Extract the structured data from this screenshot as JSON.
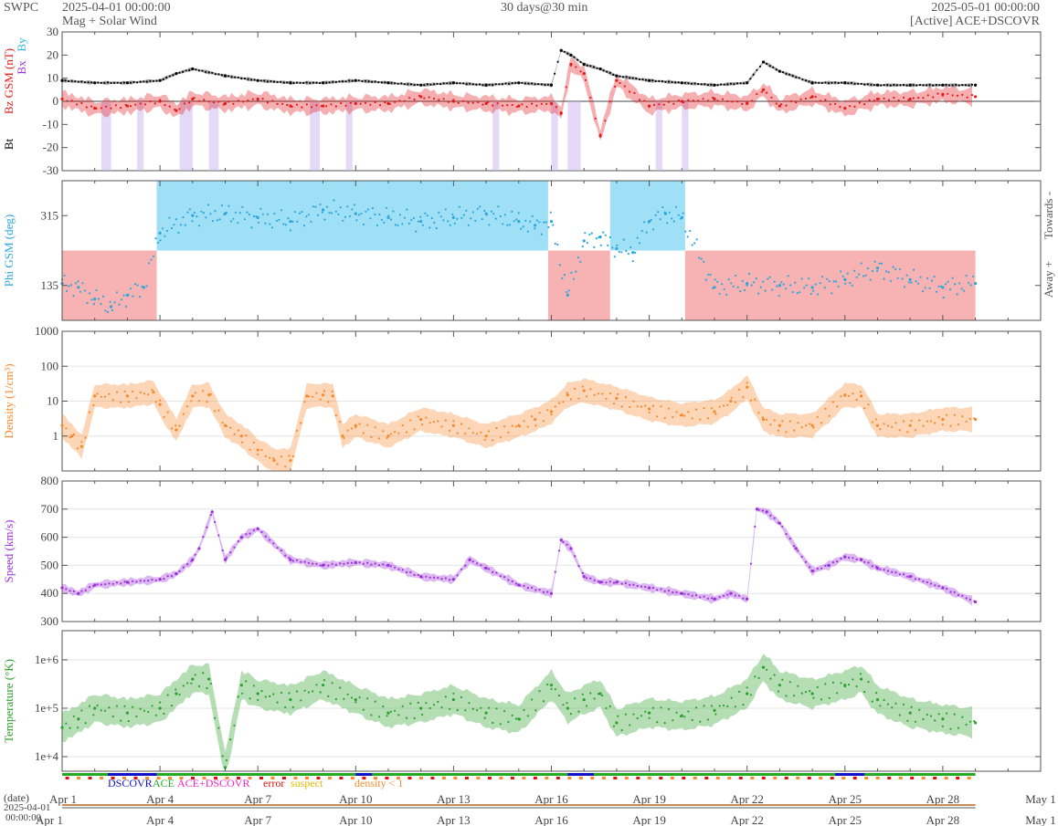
{
  "header": {
    "org": "SWPC",
    "start_time": "2025-04-01 00:00:00",
    "product": "Mag + Solar Wind",
    "span": "30 days@30 min",
    "end_time": "2025-05-01 00:00:00",
    "source": "[Active] ACE+DSCOVR"
  },
  "colors": {
    "bt": "#000000",
    "bz": "#e41a1c",
    "by": "#2fb3e0",
    "bz_alt": "#9b30d9",
    "phi_towards": "#9fe0f7",
    "phi_away": "#f7b3b3",
    "phi_points": "#2fa6d9",
    "density": "#f58a2f",
    "speed": "#9b30d9",
    "temperature": "#2ca02c",
    "dscovr": "#1111cc",
    "ace": "#22aa22",
    "ace_dscovr": "#ff22cc",
    "error": "#dd1111",
    "suspect": "#e6b800",
    "density_lt1": "#f58a2f"
  },
  "time_axis": {
    "tick_labels": [
      "Apr 1",
      "Apr 4",
      "Apr 7",
      "Apr 10",
      "Apr 13",
      "Apr 16",
      "Apr 19",
      "Apr 22",
      "Apr 25",
      "Apr 28",
      "May 1"
    ],
    "tick_days": [
      0,
      3,
      6,
      9,
      12,
      15,
      18,
      21,
      24,
      27,
      30
    ],
    "date_label": "(date)",
    "start_date": "2025-04-01",
    "start_clock": "00:00:00"
  },
  "status_legend": {
    "dscovr": "DSCOVR",
    "ace": "ACE",
    "ace_dscovr": "ACE+DSCOVR",
    "error": "error",
    "suspect": "suspect",
    "density": "density < 1"
  },
  "chart_data": [
    {
      "type": "line",
      "panel": "mag",
      "ylabel_parts": [
        "Bt",
        "Bz GSM (nT)",
        "Bx",
        "By"
      ],
      "ylim": [
        -30,
        30
      ],
      "yticks": [
        30,
        20,
        10,
        0,
        -10,
        -20,
        -30
      ],
      "x_unit": "days since start",
      "series": [
        {
          "name": "Bt",
          "x": [
            0,
            1,
            2,
            3,
            3.5,
            4,
            5,
            6,
            7,
            8,
            9,
            10,
            11,
            12,
            13,
            14,
            15,
            15.3,
            15.6,
            16,
            16.5,
            17,
            18,
            19,
            20,
            21,
            21.5,
            22,
            23,
            24,
            25,
            26,
            27,
            28
          ],
          "values": [
            9,
            8,
            8,
            9,
            12,
            14,
            11,
            9,
            8,
            8,
            9,
            8,
            7,
            8,
            7,
            8,
            7,
            22,
            20,
            16,
            14,
            11,
            9,
            8,
            7,
            8,
            17,
            13,
            8,
            8,
            7,
            7,
            7,
            7
          ]
        },
        {
          "name": "Bz GSM",
          "x": [
            0,
            1,
            2,
            3,
            3.5,
            4,
            5,
            6,
            7,
            8,
            9,
            10,
            11,
            12,
            13,
            14,
            15,
            15.3,
            15.6,
            16,
            16.5,
            17,
            18,
            19,
            20,
            21,
            21.5,
            22,
            23,
            24,
            25,
            26,
            27,
            28
          ],
          "values": [
            1,
            -3,
            -2,
            0,
            -4,
            1,
            -1,
            1,
            -2,
            -2,
            -1,
            -1,
            2,
            0,
            -1,
            -2,
            -1,
            -5,
            16,
            12,
            -15,
            9,
            -2,
            0,
            1,
            -1,
            5,
            -2,
            2,
            -3,
            1,
            1,
            3,
            2
          ]
        }
      ]
    },
    {
      "type": "scatter",
      "panel": "phi",
      "ylabel": "Phi GSM (deg)",
      "ylim": [
        45,
        405
      ],
      "yticks": [
        315,
        135
      ],
      "right_labels": [
        "Towards -",
        "Away +"
      ],
      "x_unit": "days since start",
      "towards_spans": [
        [
          2.9,
          14.9
        ],
        [
          16.8,
          19.1
        ]
      ],
      "away_spans": [
        [
          0,
          2.9
        ],
        [
          14.9,
          16.8
        ],
        [
          19.1,
          28
        ]
      ],
      "series": [
        {
          "name": "Phi",
          "x": [
            0,
            0.5,
            1,
            1.5,
            2,
            2.5,
            3,
            4,
            5,
            6,
            7,
            8,
            9,
            10,
            11,
            12,
            13,
            14,
            14.5,
            15,
            15.5,
            16,
            16.5,
            17,
            17.5,
            18,
            18.5,
            19,
            20,
            21,
            22,
            23,
            24,
            25,
            26,
            27,
            28
          ],
          "values": [
            140,
            130,
            100,
            80,
            110,
            130,
            270,
            315,
            320,
            310,
            300,
            330,
            320,
            310,
            300,
            310,
            320,
            300,
            290,
            300,
            110,
            250,
            260,
            230,
            220,
            300,
            320,
            310,
            130,
            140,
            135,
            130,
            150,
            180,
            150,
            130,
            140
          ]
        }
      ]
    },
    {
      "type": "line",
      "panel": "density",
      "ylabel": "Density (1/cm³)",
      "yscale": "log",
      "ylim": [
        0.1,
        1000
      ],
      "yticks": [
        1000,
        100,
        10,
        1
      ],
      "x_unit": "days since start",
      "series": [
        {
          "name": "Density",
          "x": [
            0,
            0.3,
            0.6,
            1,
            2,
            2.8,
            3,
            3.5,
            4,
            4.5,
            5,
            5.5,
            6,
            6.5,
            7,
            7.5,
            8,
            8.3,
            8.6,
            9,
            10,
            11,
            12,
            13,
            14,
            14.5,
            15,
            15.5,
            16,
            17,
            18,
            19,
            20,
            20.5,
            21,
            21.5,
            22,
            23,
            24,
            24.5,
            25,
            26,
            27,
            28
          ],
          "values": [
            2,
            1,
            0.5,
            14,
            14,
            18,
            8,
            1.5,
            14,
            15,
            2,
            1,
            0.4,
            0.2,
            0.2,
            14,
            15,
            14,
            1,
            2,
            1,
            3,
            2,
            1,
            2,
            3,
            5,
            15,
            20,
            12,
            6,
            4,
            5,
            10,
            25,
            3,
            2,
            2,
            15,
            14,
            2,
            2,
            3,
            3
          ]
        }
      ]
    },
    {
      "type": "line",
      "panel": "speed",
      "ylabel": "Speed (km/s)",
      "ylim": [
        300,
        800
      ],
      "yticks": [
        800,
        700,
        600,
        500,
        400,
        300
      ],
      "x_unit": "days since start",
      "series": [
        {
          "name": "Speed",
          "x": [
            0,
            0.5,
            1,
            2,
            3,
            3.5,
            4,
            4.2,
            4.6,
            5,
            5.5,
            6,
            7,
            8,
            9,
            10,
            11,
            12,
            12.5,
            13,
            14,
            15,
            15.3,
            15.6,
            16,
            16.5,
            17,
            18,
            19,
            20,
            20.5,
            21,
            21.3,
            21.6,
            22,
            22.5,
            23,
            23.5,
            24,
            24.5,
            25,
            26,
            27,
            28
          ],
          "values": [
            420,
            400,
            430,
            440,
            450,
            470,
            520,
            560,
            690,
            520,
            600,
            630,
            520,
            500,
            510,
            500,
            460,
            450,
            520,
            490,
            430,
            400,
            590,
            560,
            460,
            440,
            440,
            420,
            400,
            380,
            400,
            380,
            700,
            690,
            650,
            560,
            480,
            500,
            530,
            520,
            490,
            460,
            420,
            370
          ]
        }
      ]
    },
    {
      "type": "line",
      "panel": "temperature",
      "ylabel": "Temperature (°K)",
      "yscale": "log",
      "ylim": [
        5000,
        4000000
      ],
      "yticks": [
        1000000,
        100000,
        10000
      ],
      "ytick_labels": [
        "1e+6",
        "1e+5",
        "1e+4"
      ],
      "x_unit": "days since start",
      "series": [
        {
          "name": "Temperature",
          "x": [
            0,
            0.5,
            1,
            2,
            3,
            3.5,
            4,
            4.5,
            5,
            5.5,
            6,
            7,
            8,
            9,
            10,
            11,
            12,
            13,
            14,
            15,
            15.5,
            16,
            16.5,
            17,
            18,
            19,
            20,
            21,
            21.5,
            22,
            23,
            24,
            24.5,
            25,
            26,
            27,
            28
          ],
          "values": [
            40000,
            60000,
            100000,
            80000,
            100000,
            200000,
            400000,
            400000,
            6000,
            300000,
            200000,
            150000,
            300000,
            150000,
            80000,
            100000,
            150000,
            80000,
            60000,
            300000,
            100000,
            150000,
            200000,
            50000,
            80000,
            70000,
            90000,
            200000,
            700000,
            300000,
            200000,
            300000,
            400000,
            150000,
            80000,
            60000,
            50000
          ]
        }
      ]
    }
  ]
}
